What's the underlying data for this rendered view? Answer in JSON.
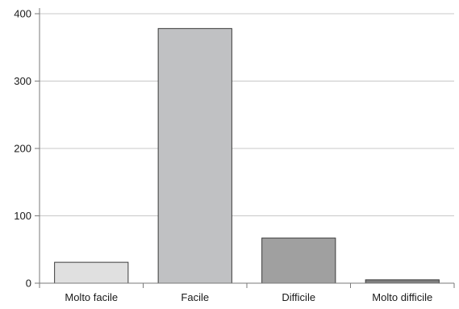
{
  "chart_data": {
    "type": "bar",
    "title": "",
    "xlabel": "",
    "ylabel": "",
    "categories": [
      "Molto facile",
      "Facile",
      "Difficile",
      "Molto difficile"
    ],
    "values": [
      31,
      378,
      67,
      5
    ],
    "ylim": [
      0,
      400
    ],
    "yticks": [
      0,
      100,
      200,
      300,
      400
    ],
    "grid": true,
    "legend": "none",
    "bar_colors": [
      "#e0e0e0",
      "#c0c1c3",
      "#a0a0a0",
      "#7f7f7f"
    ]
  }
}
